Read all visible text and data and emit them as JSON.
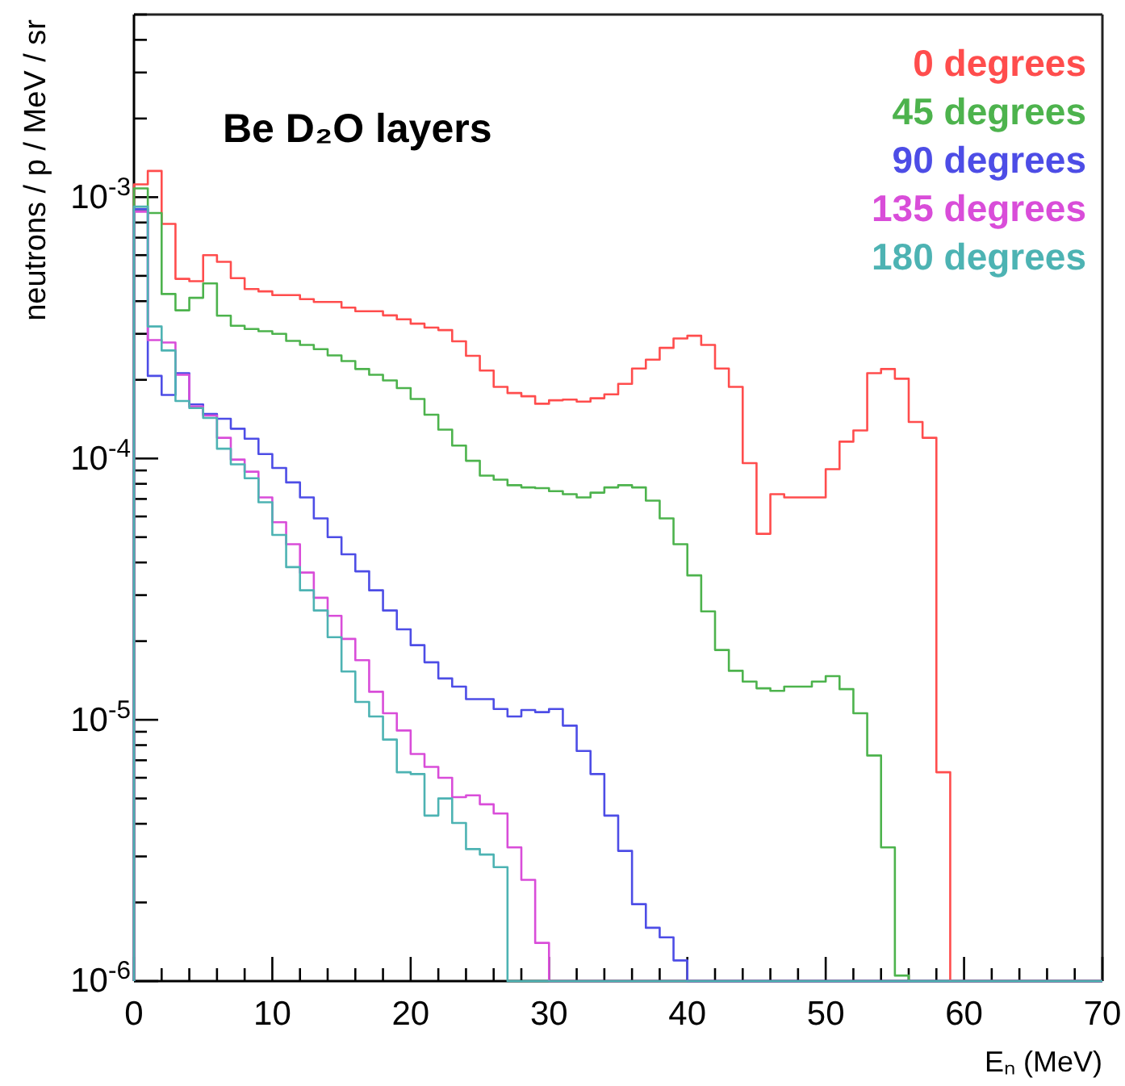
{
  "chart_data": {
    "type": "histogram",
    "title": "Be D₂O layers",
    "xlabel": "Eₙ (MeV)",
    "ylabel": "neutrons / p / MeV / sr",
    "bins": [
      0,
      1,
      2,
      3,
      4,
      5,
      6,
      7,
      8,
      9,
      10,
      11,
      12,
      13,
      14,
      15,
      16,
      17,
      18,
      19,
      20,
      21,
      22,
      23,
      24,
      25,
      26,
      27,
      28,
      29,
      30,
      31,
      32,
      33,
      34,
      35,
      36,
      37,
      38,
      39,
      40,
      41,
      42,
      43,
      44,
      45,
      46,
      47,
      48,
      49,
      50,
      51,
      52,
      53,
      54,
      55,
      56,
      57,
      58,
      59,
      60,
      61,
      62,
      63,
      64,
      65,
      66,
      67,
      68,
      69,
      70
    ],
    "series": [
      {
        "name": "0 degrees",
        "color": "#ff4d4d",
        "values": [
          0.00112,
          0.00126,
          0.00079,
          0.000487,
          0.000477,
          0.0006,
          0.000566,
          0.00049,
          0.000445,
          0.000436,
          0.000422,
          0.000422,
          0.000407,
          0.000397,
          0.000397,
          0.000378,
          0.000366,
          0.000366,
          0.000353,
          0.000341,
          0.000328,
          0.000317,
          0.00031,
          0.000281,
          0.000247,
          0.000217,
          0.000188,
          0.000178,
          0.000173,
          0.000162,
          0.000167,
          0.000168,
          0.000165,
          0.00017,
          0.000176,
          0.000193,
          0.000221,
          0.000239,
          0.000265,
          0.000288,
          0.000295,
          0.000272,
          0.000221,
          0.000188,
          9.6e-05,
          5.15e-05,
          7.3e-05,
          7.1e-05,
          7.1e-05,
          7.1e-05,
          9.1e-05,
          0.000116,
          0.000128,
          0.000212,
          0.00022,
          0.000202,
          0.000138,
          0.00012,
          6.3e-06,
          null,
          null,
          null,
          null,
          null,
          null,
          null,
          null,
          null,
          null,
          null
        ]
      },
      {
        "name": "45 degrees",
        "color": "#4db34d",
        "values": [
          0.00108,
          0.00087,
          0.000426,
          0.000369,
          0.000412,
          0.000468,
          0.000352,
          0.000322,
          0.000313,
          0.000307,
          0.0003,
          0.000282,
          0.000272,
          0.000262,
          0.000248,
          0.000236,
          0.00022,
          0.000209,
          0.000199,
          0.000186,
          0.000169,
          0.000147,
          0.000129,
          0.000112,
          9.8e-05,
          8.6e-05,
          8.3e-05,
          7.9e-05,
          7.75e-05,
          7.7e-05,
          7.5e-05,
          7.3e-05,
          7.1e-05,
          7.4e-05,
          7.75e-05,
          7.9e-05,
          7.75e-05,
          6.9e-05,
          5.9e-05,
          4.7e-05,
          3.57e-05,
          2.6e-05,
          1.85e-05,
          1.54e-05,
          1.4e-05,
          1.32e-05,
          1.29e-05,
          1.34e-05,
          1.34e-05,
          1.4e-05,
          1.47e-05,
          1.31e-05,
          1.06e-05,
          7.3e-06,
          3.25e-06,
          1.05e-06,
          null,
          null,
          null,
          null,
          null,
          null,
          null,
          null,
          null,
          null,
          null,
          null,
          null,
          null
        ]
      },
      {
        "name": "90 degrees",
        "color": "#4d4de6",
        "values": [
          0.0009,
          0.000207,
          0.000175,
          0.000212,
          0.000161,
          0.000148,
          0.000142,
          0.00013,
          0.000119,
          0.000104,
          9.2e-05,
          8.1e-05,
          7.1e-05,
          5.9e-05,
          5e-05,
          4.3e-05,
          3.7e-05,
          3.13e-05,
          2.62e-05,
          2.22e-05,
          1.93e-05,
          1.66e-05,
          1.44e-05,
          1.34e-05,
          1.2e-05,
          1.2e-05,
          1.1e-05,
          1.03e-05,
          1.09e-05,
          1.07e-05,
          1.1e-05,
          9.5e-06,
          7.6e-06,
          6.2e-06,
          4.3e-06,
          3.15e-06,
          1.97e-06,
          1.6e-06,
          1.47e-06,
          1.2e-06,
          null,
          null,
          null,
          null,
          null,
          null,
          null,
          null,
          null,
          null,
          null,
          null,
          null,
          null,
          null,
          null,
          null,
          null,
          null,
          null,
          null,
          null,
          null,
          null,
          null,
          null,
          null,
          null,
          null,
          null
        ]
      },
      {
        "name": "135 degrees",
        "color": "#d94dd9",
        "values": [
          0.00088,
          0.000284,
          0.000278,
          0.000209,
          0.000158,
          0.000146,
          0.00012,
          9.9e-05,
          8.9e-05,
          7.1e-05,
          5.7e-05,
          4.7e-05,
          3.66e-05,
          2.93e-05,
          2.5e-05,
          2.04e-05,
          1.69e-05,
          1.28e-05,
          1.06e-05,
          9.1e-06,
          7.4e-06,
          6.6e-06,
          6e-06,
          5.06e-06,
          5.14e-06,
          4.75e-06,
          4.38e-06,
          3.25e-06,
          2.44e-06,
          1.4e-06,
          null,
          null,
          null,
          null,
          null,
          null,
          null,
          null,
          null,
          null,
          null,
          null,
          null,
          null,
          null,
          null,
          null,
          null,
          null,
          null,
          null,
          null,
          null,
          null,
          null,
          null,
          null,
          null,
          null,
          null,
          null,
          null,
          null,
          null,
          null,
          null,
          null,
          null,
          null,
          null
        ]
      },
      {
        "name": "180 degrees",
        "color": "#4db3b3",
        "values": [
          0.00092,
          0.00032,
          0.000259,
          0.000166,
          0.000156,
          0.000143,
          0.000109,
          9.5e-05,
          8.4e-05,
          6.8e-05,
          5.1e-05,
          3.84e-05,
          3.13e-05,
          2.62e-05,
          2.07e-05,
          1.53e-05,
          1.17e-05,
          1.03e-05,
          8.4e-06,
          6.3e-06,
          6.2e-06,
          4.3e-06,
          5e-06,
          4.03e-06,
          3.2e-06,
          3.05e-06,
          2.73e-06,
          null,
          null,
          null,
          null,
          null,
          null,
          null,
          null,
          null,
          null,
          null,
          null,
          null,
          null,
          null,
          null,
          null,
          null,
          null,
          null,
          null,
          null,
          null,
          null,
          null,
          null,
          null,
          null,
          null,
          null,
          null,
          null,
          null,
          null,
          null,
          null,
          null,
          null,
          null,
          null,
          null,
          null,
          null
        ]
      }
    ],
    "xlim": [
      0,
      70
    ],
    "xticks": [
      0,
      {
        "value": 2,
        "label": null
      },
      {
        "value": 4,
        "label": null
      },
      {
        "value": 6,
        "label": null
      },
      {
        "value": 8,
        "label": null
      },
      10,
      {
        "value": 12,
        "label": null
      },
      {
        "value": 14,
        "label": null
      },
      {
        "value": 16,
        "label": null
      },
      {
        "value": 18,
        "label": null
      },
      20,
      {
        "value": 22,
        "label": null
      },
      {
        "value": 24,
        "label": null
      },
      {
        "value": 26,
        "label": null
      },
      {
        "value": 28,
        "label": null
      },
      30,
      {
        "value": 32,
        "label": null
      },
      {
        "value": 34,
        "label": null
      },
      {
        "value": 36,
        "label": null
      },
      {
        "value": 38,
        "label": null
      },
      40,
      {
        "value": 42,
        "label": null
      },
      {
        "value": 44,
        "label": null
      },
      {
        "value": 46,
        "label": null
      },
      {
        "value": 48,
        "label": null
      },
      50,
      {
        "value": 52,
        "label": null
      },
      {
        "value": 54,
        "label": null
      },
      {
        "value": 56,
        "label": null
      },
      {
        "value": 58,
        "label": null
      },
      60,
      {
        "value": 62,
        "label": null
      },
      {
        "value": 64,
        "label": null
      },
      {
        "value": 66,
        "label": null
      },
      {
        "value": 68,
        "label": null
      },
      70
    ],
    "ylim": [
      1e-06,
      0.005
    ],
    "yticks": [
      {
        "value": 1e-06,
        "label": "10$^{-6}$"
      },
      {
        "value": 2e-06,
        "label": null
      },
      {
        "value": 3e-06,
        "label": null
      },
      {
        "value": 4e-06,
        "label": null
      },
      {
        "value": 5e-06,
        "label": null
      },
      {
        "value": 6e-06,
        "label": null
      },
      {
        "value": 7e-06,
        "label": null
      },
      {
        "value": 8e-06,
        "label": null
      },
      {
        "value": 9e-06,
        "label": null
      },
      {
        "value": 1e-05,
        "label": "10$^{-5}$"
      },
      {
        "value": 2e-05,
        "label": null
      },
      {
        "value": 3e-05,
        "label": null
      },
      {
        "value": 4e-05,
        "label": null
      },
      {
        "value": 5e-05,
        "label": null
      },
      {
        "value": 6e-05,
        "label": null
      },
      {
        "value": 7e-05,
        "label": null
      },
      {
        "value": 8e-05,
        "label": null
      },
      {
        "value": 9e-05,
        "label": null
      },
      {
        "value": 0.0001,
        "label": "10$^{-4}$"
      },
      {
        "value": 0.0002,
        "label": null
      },
      {
        "value": 0.0003,
        "label": null
      },
      {
        "value": 0.0004,
        "label": null
      },
      {
        "value": 0.0005,
        "label": null
      },
      {
        "value": 0.0006,
        "label": null
      },
      {
        "value": 0.0007,
        "label": null
      },
      {
        "value": 0.0008,
        "label": null
      },
      {
        "value": 0.0009,
        "label": null
      },
      {
        "value": 0.001,
        "label": "10$^{-3}$"
      },
      {
        "value": 0.002,
        "label": null
      },
      {
        "value": 0.003,
        "label": null
      },
      {
        "value": 0.004,
        "label": null
      },
      {
        "value": 0.005,
        "label": null
      }
    ],
    "log": "y",
    "grid": false,
    "legend": "top right"
  }
}
